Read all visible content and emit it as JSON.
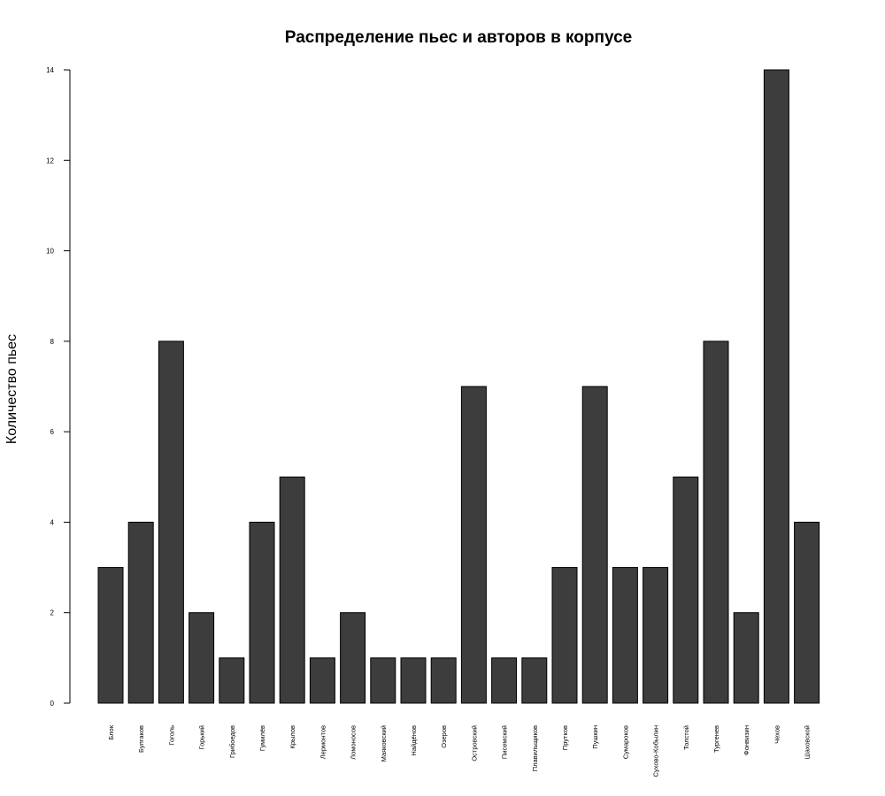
{
  "chart_data": {
    "type": "bar",
    "title": "Распределение пьес и авторов в корпусе",
    "xlabel": "",
    "ylabel": "Количество пьес",
    "ylim": [
      0,
      14
    ],
    "yticks": [
      0,
      2,
      4,
      6,
      8,
      10,
      12,
      14
    ],
    "grid": false,
    "bar_color": "#3d3d3d",
    "categories": [
      "Блок",
      "Булгаков",
      "Гоголь",
      "Горький",
      "Грибоедов",
      "Гумилёв",
      "Крылов",
      "Лермонтов",
      "Ломоносов",
      "Маяковский",
      "Найдёнов",
      "Озеров",
      "Островский",
      "Писемский",
      "Плавильщиков",
      "Прутков",
      "Пушкин",
      "Сумароков",
      "Сухово-Кобылин",
      "Толстой",
      "Тургенев",
      "Фонвизин",
      "Чехов",
      "Шаховской"
    ],
    "values": [
      3,
      4,
      8,
      2,
      1,
      4,
      5,
      1,
      2,
      1,
      1,
      1,
      7,
      1,
      1,
      3,
      7,
      3,
      3,
      5,
      8,
      2,
      14,
      4
    ]
  }
}
